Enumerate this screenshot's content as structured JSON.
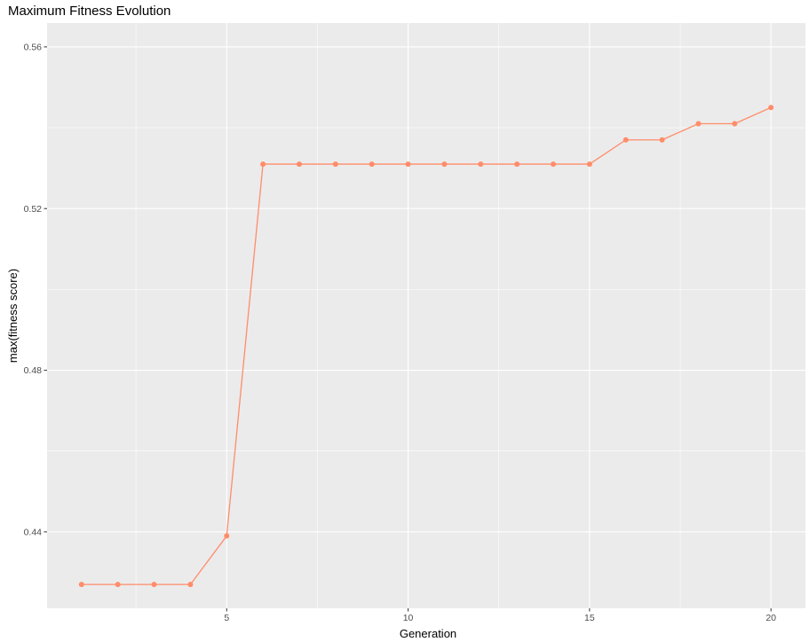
{
  "chart_data": {
    "type": "line",
    "title": "Maximum Fitness Evolution",
    "xlabel": "Generation",
    "ylabel": "max(fitness score)",
    "x": [
      1,
      2,
      3,
      4,
      5,
      6,
      7,
      8,
      9,
      10,
      11,
      12,
      13,
      14,
      15,
      16,
      17,
      18,
      19,
      20
    ],
    "series": [
      {
        "values": [
          0.427,
          0.427,
          0.427,
          0.427,
          0.439,
          0.531,
          0.531,
          0.531,
          0.531,
          0.531,
          0.531,
          0.531,
          0.531,
          0.531,
          0.531,
          0.537,
          0.537,
          0.541,
          0.541,
          0.545
        ],
        "color": "#FF8C69"
      }
    ],
    "xlim": [
      0.05,
      20.95
    ],
    "ylim": [
      0.4211,
      0.5659
    ],
    "x_ticks": [
      5,
      10,
      15,
      20
    ],
    "x_tick_labels": [
      "5",
      "10",
      "15",
      "20"
    ],
    "y_ticks": [
      0.44,
      0.48,
      0.52,
      0.56
    ],
    "y_tick_labels": [
      "0.44",
      "0.48",
      "0.52",
      "0.56"
    ],
    "grid": true,
    "legend": "none",
    "panel_color": "#EBEBEB",
    "grid_color": "#FFFFFF"
  }
}
